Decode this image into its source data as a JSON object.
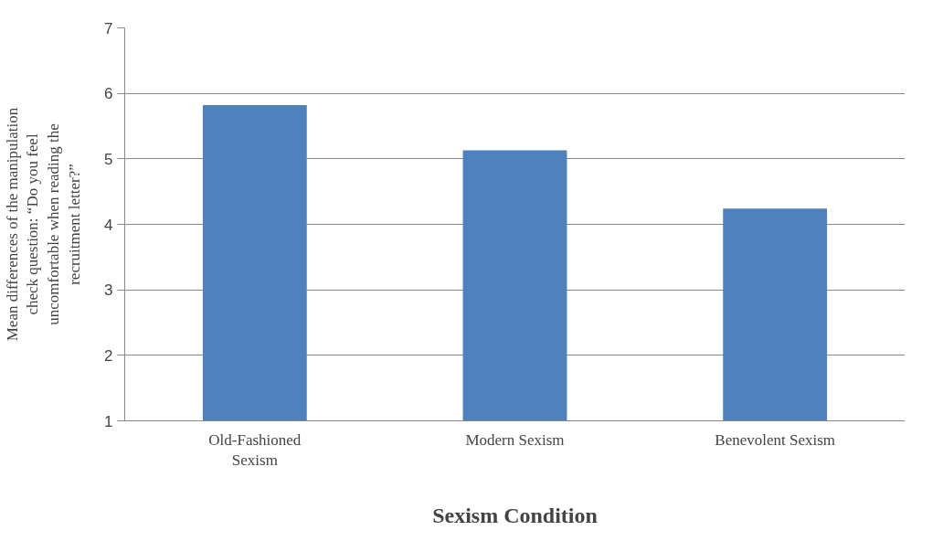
{
  "chart_data": {
    "type": "bar",
    "xlabel": "Sexism Condition",
    "ylabel": "Mean differences of the manipulation check question: “Do you feel uncomfortable when reading the recruitment letter?”",
    "categories": [
      "Old-Fashioned Sexism",
      "Modern Sexism",
      "Benevolent Sexism"
    ],
    "values": [
      5.82,
      5.13,
      4.24
    ],
    "color": "#4f81bd",
    "ylim": [
      1,
      7
    ],
    "yticks": [
      1,
      2,
      3,
      4,
      5,
      6,
      7
    ],
    "grid": "y"
  }
}
